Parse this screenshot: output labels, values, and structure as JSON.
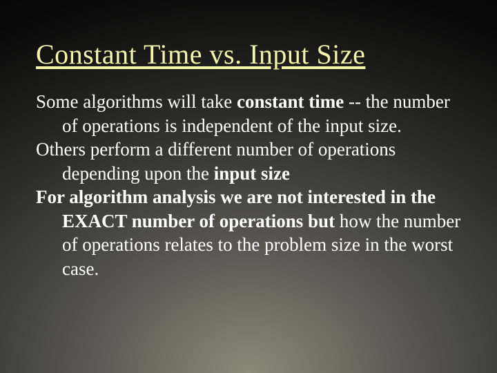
{
  "slide": {
    "title": "Constant Time vs. Input Size",
    "title_color": "#f5f5a8",
    "title_fontsize": 40,
    "body_color": "#ffffff",
    "body_fontsize": 27,
    "background": {
      "type": "radial-gradient",
      "center_color": "#8a8a7a",
      "mid_color": "#2a2a28",
      "outer_color": "#000000"
    },
    "lines": {
      "p1a": "Some algorithms will take ",
      "p1b": "constant time",
      "p1c": " -- the number of operations is independent of the input size.",
      "p2a": "Others perform a different number of operations depending upon the ",
      "p2b": "input size",
      "p3a": "For algorithm analysis we are not interested in the EXACT number of operations but ",
      "p3b": "how the number of operations relates to the problem size in the worst case."
    }
  }
}
